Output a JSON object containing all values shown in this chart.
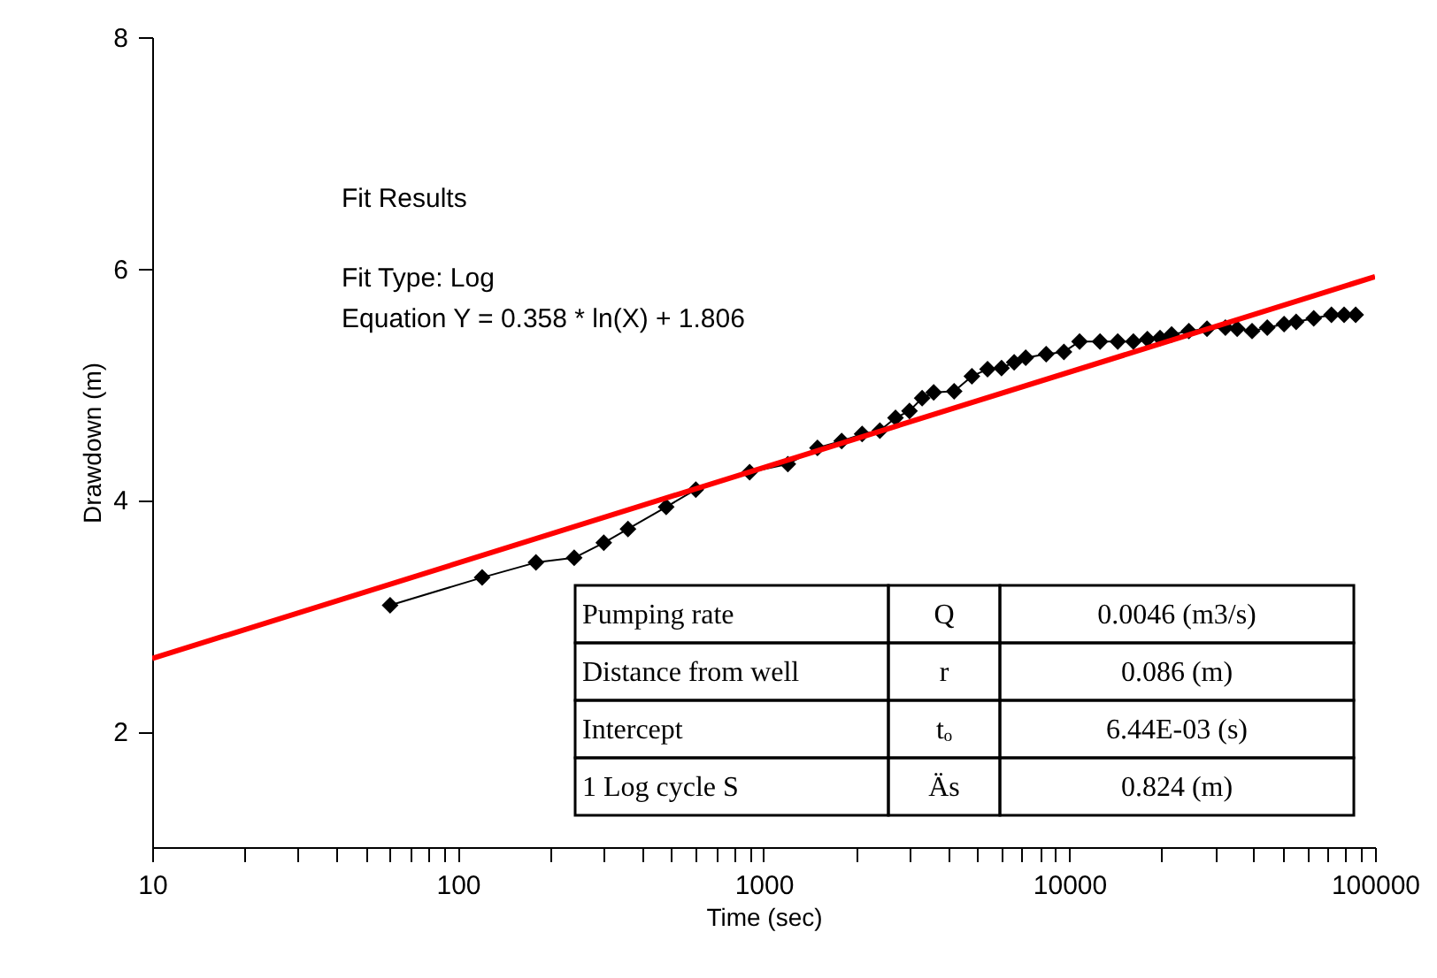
{
  "chart_data": {
    "type": "line",
    "xlabel": "Time (sec)",
    "ylabel": "Drawdown (m)",
    "xlim": [
      10,
      100000
    ],
    "ylim": [
      1,
      8
    ],
    "log": "x",
    "grid": false,
    "xticks": [
      10,
      {
        "value": 20,
        "label": null
      },
      {
        "value": 30,
        "label": null
      },
      {
        "value": 40,
        "label": null
      },
      {
        "value": 50,
        "label": null
      },
      {
        "value": 60,
        "label": null
      },
      {
        "value": 70,
        "label": null
      },
      {
        "value": 80,
        "label": null
      },
      {
        "value": 90,
        "label": null
      },
      100,
      {
        "value": 200,
        "label": null
      },
      {
        "value": 300,
        "label": null
      },
      {
        "value": 400,
        "label": null
      },
      {
        "value": 500,
        "label": null
      },
      {
        "value": 600,
        "label": null
      },
      {
        "value": 700,
        "label": null
      },
      {
        "value": 800,
        "label": null
      },
      {
        "value": 900,
        "label": null
      },
      1000,
      {
        "value": 2000,
        "label": null
      },
      {
        "value": 3000,
        "label": null
      },
      {
        "value": 4000,
        "label": null
      },
      {
        "value": 5000,
        "label": null
      },
      {
        "value": 6000,
        "label": null
      },
      {
        "value": 7000,
        "label": null
      },
      {
        "value": 8000,
        "label": null
      },
      {
        "value": 9000,
        "label": null
      },
      10000,
      {
        "value": 20000,
        "label": null
      },
      {
        "value": 30000,
        "label": null
      },
      {
        "value": 40000,
        "label": null
      },
      {
        "value": 50000,
        "label": null
      },
      {
        "value": 60000,
        "label": null
      },
      {
        "value": 70000,
        "label": null
      },
      {
        "value": 80000,
        "label": null
      },
      {
        "value": 90000,
        "label": null
      },
      100000
    ],
    "yticks": [
      2,
      4,
      6,
      8
    ],
    "series": [
      {
        "marker": "diamond",
        "color": "#000000",
        "x": [
          60,
          120,
          180,
          240,
          300,
          360,
          480,
          600,
          900,
          1200,
          1500,
          1800,
          2100,
          2400,
          2700,
          3000,
          3300,
          3600,
          4200,
          4800,
          5400,
          6000,
          6600,
          7200,
          8400,
          9600,
          10800,
          12600,
          14400,
          16200,
          18000,
          19800,
          21600,
          24600,
          28200,
          32400,
          35400,
          39600,
          44400,
          50400,
          55200,
          63000,
          72000,
          79200,
          86400
        ],
        "values": [
          3.09,
          3.33,
          3.46,
          3.5,
          3.63,
          3.75,
          3.94,
          4.09,
          4.24,
          4.31,
          4.45,
          4.51,
          4.57,
          4.6,
          4.71,
          4.77,
          4.88,
          4.93,
          4.94,
          5.07,
          5.13,
          5.14,
          5.19,
          5.23,
          5.26,
          5.28,
          5.37,
          5.37,
          5.37,
          5.37,
          5.39,
          5.4,
          5.43,
          5.46,
          5.48,
          5.49,
          5.48,
          5.46,
          5.49,
          5.52,
          5.54,
          5.57,
          5.6,
          5.6,
          5.6
        ]
      },
      {
        "marker": "none",
        "color": "#ff0000",
        "x": [
          10,
          100000
        ],
        "values": [
          2.63,
          5.93
        ]
      }
    ],
    "annotations": [
      "Fit Results",
      "Fit Type: Log",
      "Equation Y = 0.358 * ln(X) + 1.806",
      "Pumping rate",
      "Q",
      "0.0046 (m3/s)",
      "Distance from well",
      "r",
      "0.086 (m)",
      "Intercept",
      "tₒ",
      "6.44E-03 (s)",
      "1 Log cycle S",
      "Äs",
      "0.824 (m)"
    ]
  }
}
